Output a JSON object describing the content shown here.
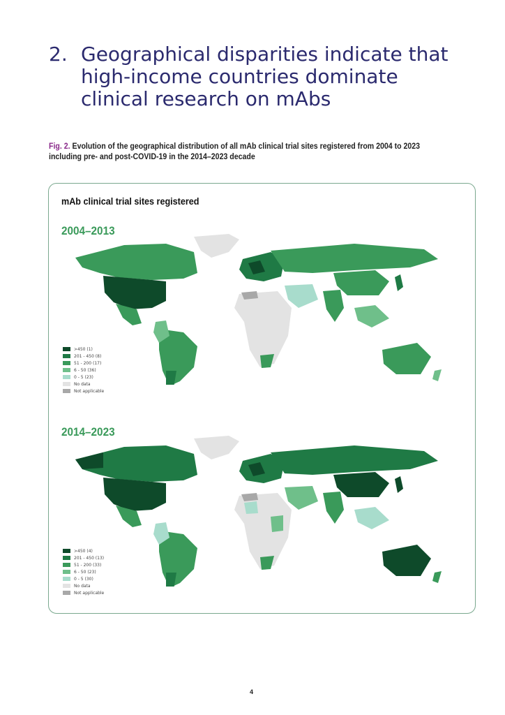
{
  "heading": {
    "number": "2.",
    "text": "Geographical disparities indicate that high-income countries dominate clinical research on mAbs"
  },
  "caption": {
    "fig_label": "Fig. 2.",
    "text": "Evolution of the geographical distribution of all mAb clinical trial sites registered from 2004 to 2023 including pre- and post-COVID-19 in the 2014–2023 decade"
  },
  "figure": {
    "title": "mAb clinical trial sites registered",
    "maps": [
      {
        "period": "2004–2013",
        "legend": [
          {
            "label": ">450 (1)",
            "color": "#0e4a2a"
          },
          {
            "label": "201 - 450 (8)",
            "color": "#1f7a45"
          },
          {
            "label": "51 - 200 (17)",
            "color": "#3a9a5a"
          },
          {
            "label": "6 - 50 (36)",
            "color": "#6fbf8a"
          },
          {
            "label": "0 - 5 (23)",
            "color": "#a8dccc"
          },
          {
            "label": "No data",
            "color": "#e3e3e3"
          },
          {
            "label": "Not applicable",
            "color": "#a8a8a8"
          }
        ]
      },
      {
        "period": "2014–2023",
        "legend": [
          {
            "label": ">450 (4)",
            "color": "#0e4a2a"
          },
          {
            "label": "201 - 450 (13)",
            "color": "#1f7a45"
          },
          {
            "label": "51 - 200 (33)",
            "color": "#3a9a5a"
          },
          {
            "label": "6 - 50 (23)",
            "color": "#6fbf8a"
          },
          {
            "label": "0 - 5 (30)",
            "color": "#a8dccc"
          },
          {
            "label": "No data",
            "color": "#e3e3e3"
          },
          {
            "label": "Not applicable",
            "color": "#a8a8a8"
          }
        ]
      }
    ]
  },
  "page_number": "4"
}
